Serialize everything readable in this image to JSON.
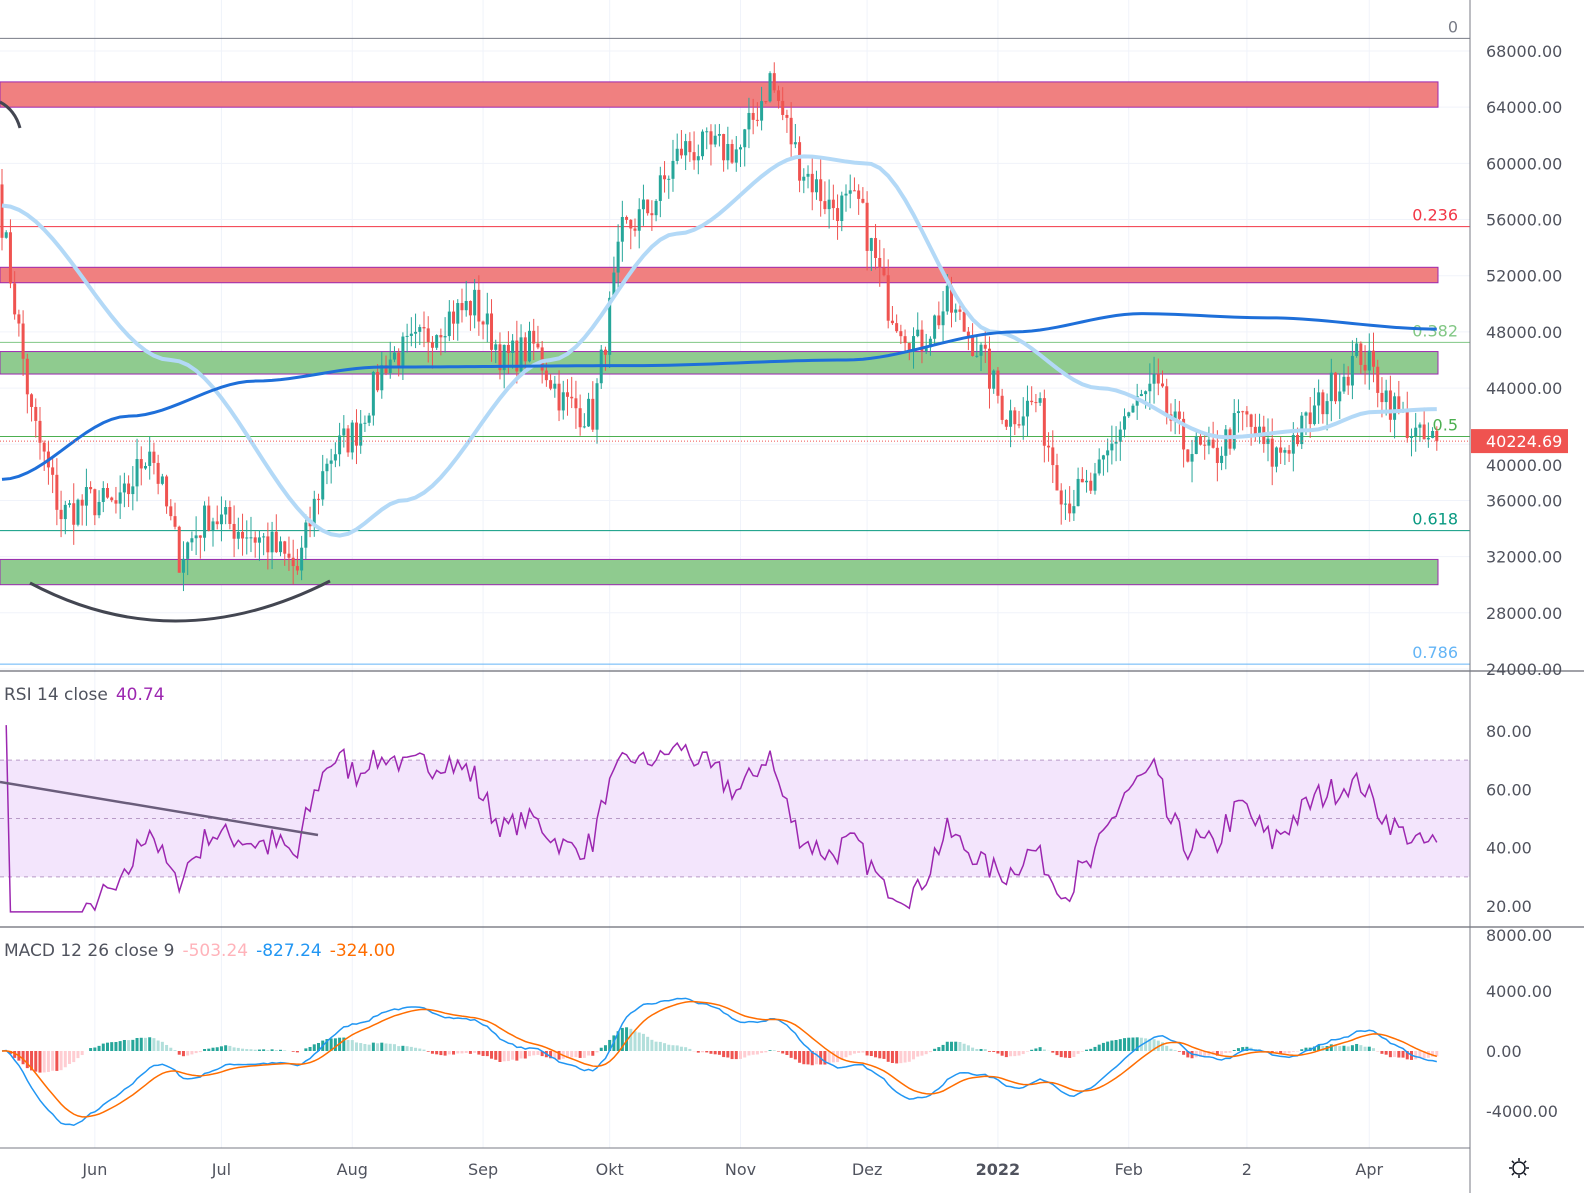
{
  "chart_data": {
    "type": "candlestick",
    "symbol_last_price": "40224.69",
    "price_axis_ticks": [
      "68000.00",
      "64000.00",
      "60000.00",
      "56000.00",
      "52000.00",
      "48000.00",
      "44000.00",
      "40000.00",
      "36000.00",
      "32000.00",
      "28000.00",
      "24000.00"
    ],
    "time_axis_ticks": [
      {
        "label": "Jun",
        "day": 22
      },
      {
        "label": "Jul",
        "day": 52
      },
      {
        "label": "Aug",
        "day": 83
      },
      {
        "label": "Sep",
        "day": 114
      },
      {
        "label": "Okt",
        "day": 144
      },
      {
        "label": "Nov",
        "day": 175
      },
      {
        "label": "Dez",
        "day": 205
      },
      {
        "label": "2022",
        "day": 236
      },
      {
        "label": "Feb",
        "day": 267
      },
      {
        "label": "2",
        "day": 295
      },
      {
        "label": "Apr",
        "day": 324
      }
    ],
    "start_date": "2021-05-10",
    "weekly_closes": [
      56000,
      42000,
      35000,
      36000,
      35500,
      40000,
      32000,
      35000,
      34000,
      33000,
      31000,
      39000,
      41000,
      46000,
      47000,
      49000,
      50000,
      46000,
      47000,
      43000,
      42000,
      55000,
      57000,
      61000,
      61000,
      61000,
      66000,
      60000,
      57000,
      57000,
      50000,
      47000,
      50000,
      47000,
      42000,
      43000,
      36000,
      37000,
      42000,
      44000,
      40000,
      39000,
      42000,
      39000,
      41000,
      44000,
      46500,
      43000,
      40224
    ],
    "ma_fast_knots": [
      [
        0,
        57000
      ],
      [
        40,
        46000
      ],
      [
        80,
        33500
      ],
      [
        95,
        36000
      ],
      [
        130,
        46000
      ],
      [
        160,
        55000
      ],
      [
        190,
        60500
      ],
      [
        205,
        60000
      ],
      [
        235,
        48000
      ],
      [
        260,
        44000
      ],
      [
        290,
        40500
      ],
      [
        310,
        41000
      ],
      [
        325,
        42300
      ],
      [
        340,
        42500
      ]
    ],
    "ma_slow_knots": [
      [
        0,
        37500
      ],
      [
        30,
        42000
      ],
      [
        60,
        44500
      ],
      [
        90,
        45500
      ],
      [
        150,
        45600
      ],
      [
        200,
        46000
      ],
      [
        240,
        48000
      ],
      [
        270,
        49300
      ],
      [
        300,
        49000
      ],
      [
        340,
        48200
      ]
    ],
    "zones": [
      {
        "type": "resistance",
        "color": "#f08080",
        "from": 64000,
        "to": 65800
      },
      {
        "type": "resistance",
        "color": "#f08080",
        "from": 51500,
        "to": 52600
      },
      {
        "type": "support",
        "color": "#8fcb8f",
        "from": 45000,
        "to": 46600
      },
      {
        "type": "support",
        "color": "#8fcb8f",
        "from": 30000,
        "to": 31800
      }
    ],
    "fib_levels": [
      {
        "label": "0",
        "price": 68900,
        "color": "#787b86"
      },
      {
        "label": "0.236",
        "price": 55500,
        "color": "#f23645"
      },
      {
        "label": "0.382",
        "price": 47250,
        "color": "#81c784"
      },
      {
        "label": "0.5",
        "price": 40550,
        "color": "#4caf50"
      },
      {
        "label": "0.618",
        "price": 33850,
        "color": "#089981"
      },
      {
        "label": "0.786",
        "price": 24350,
        "color": "#64b5f6"
      }
    ],
    "rsi": {
      "title": "RSI 14 close",
      "value": "40.74",
      "ticks": [
        "80.00",
        "60.00",
        "40.00",
        "20.00"
      ],
      "upper": 70,
      "lower": 30
    },
    "macd": {
      "title": "MACD 12 26 close 9",
      "histogram": "-503.24",
      "macd": "-827.24",
      "signal": "-324.00",
      "ticks": [
        "8000.00",
        "4000.00",
        "0.00",
        "-4000.00"
      ]
    },
    "colors": {
      "up": "#26a69a",
      "down": "#ef5350",
      "ma_fast": "#b3d9f7",
      "ma_slow": "#1e6fd9",
      "rsi": "#9c27b0",
      "macd": "#2196f3",
      "signal": "#ff6d00"
    }
  }
}
